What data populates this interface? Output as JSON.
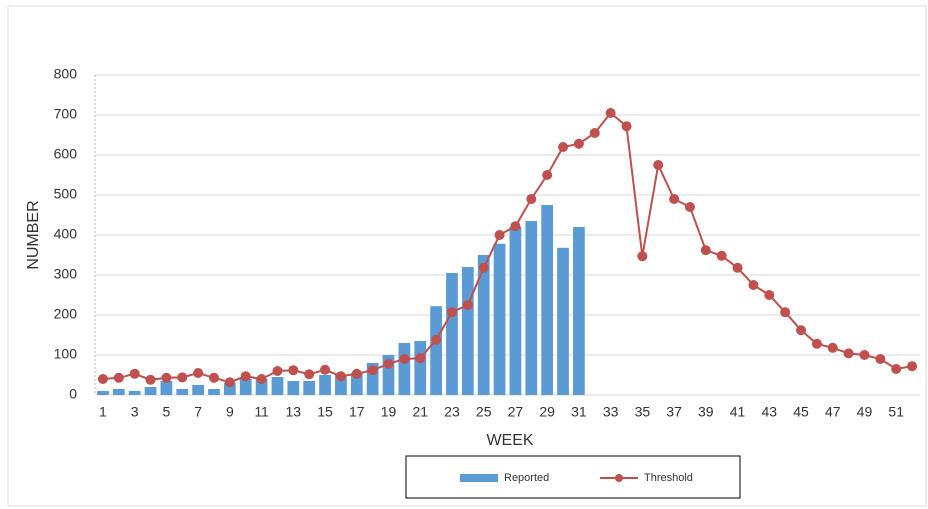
{
  "chart_data": {
    "type": "bar-line",
    "x_label": "WEEK",
    "y_label": "NUMBER",
    "categories": [
      "1",
      null,
      "3",
      null,
      "5",
      null,
      "7",
      null,
      "9",
      null,
      "11",
      null,
      "13",
      null,
      "15",
      null,
      "17",
      null,
      "19",
      null,
      "21",
      null,
      "23",
      null,
      "25",
      null,
      "27",
      null,
      "29",
      null,
      "31",
      null,
      "33",
      null,
      "35",
      null,
      "37",
      null,
      "39",
      null,
      "41",
      null,
      "43",
      null,
      "45",
      null,
      "47",
      null,
      "49",
      null,
      "51",
      null
    ],
    "series": [
      {
        "name": "Reported",
        "kind": "bar",
        "color": "#5b9bd5",
        "values": [
          10,
          15,
          10,
          20,
          35,
          15,
          25,
          15,
          30,
          40,
          40,
          45,
          35,
          35,
          50,
          50,
          55,
          80,
          100,
          130,
          135,
          222,
          305,
          320,
          350,
          378,
          420,
          435,
          475,
          368,
          420,
          null,
          null,
          null,
          null,
          null,
          null,
          null,
          null,
          null,
          null,
          null,
          null,
          null,
          null,
          null,
          null,
          null,
          null,
          null,
          null,
          null
        ]
      },
      {
        "name": "Threshold",
        "kind": "line",
        "color": "#c0504d",
        "values": [
          40,
          43,
          53,
          38,
          43,
          44,
          55,
          43,
          32,
          47,
          40,
          60,
          62,
          52,
          63,
          47,
          53,
          62,
          78,
          90,
          92,
          138,
          207,
          225,
          318,
          400,
          422,
          490,
          550,
          620,
          628,
          655,
          705,
          672,
          347,
          575,
          490,
          470,
          362,
          348,
          318,
          275,
          250,
          207,
          162,
          128,
          118,
          104,
          100,
          90,
          65,
          72
        ]
      }
    ],
    "ylim": [
      0,
      800
    ],
    "yticks": [
      0,
      100,
      200,
      300,
      400,
      500,
      600,
      700,
      800
    ],
    "grid": true
  }
}
